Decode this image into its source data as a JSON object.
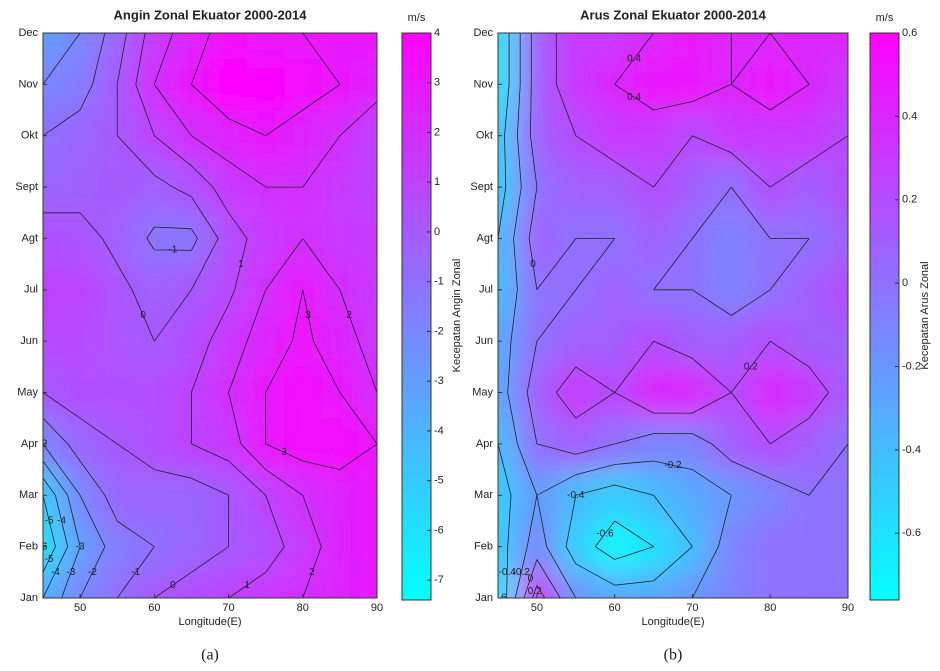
{
  "chart_data": [
    {
      "type": "contour",
      "title": "Angin Zonal Ekuator 2000-2014",
      "x_label": "Longitude(E)",
      "caption": "(a)",
      "colormap": "cool",
      "x": [
        45,
        50,
        55,
        60,
        65,
        70,
        75,
        80,
        85,
        90
      ],
      "categories": [
        "Jan",
        "Feb",
        "Mar",
        "Apr",
        "May",
        "Jun",
        "Jul",
        "Agt",
        "Sept",
        "Okt",
        "Nov",
        "Dec"
      ],
      "z": [
        [
          -4,
          -2,
          -1,
          0,
          0.5,
          1,
          1.5,
          2,
          2.5,
          3
        ],
        [
          -6,
          -3,
          -1.5,
          -1,
          -0.5,
          0,
          0.5,
          1.5,
          2.5,
          3
        ],
        [
          -5,
          -2,
          -0.5,
          -0.5,
          -0.5,
          0,
          1,
          2,
          2.5,
          3
        ],
        [
          -2,
          -0.5,
          0,
          0.5,
          1,
          1.5,
          3,
          3.5,
          3.5,
          3
        ],
        [
          0,
          0.5,
          0.5,
          0.5,
          1,
          2,
          3,
          3.5,
          3,
          2
        ],
        [
          0.8,
          0.8,
          0.3,
          0,
          0.5,
          1.5,
          2.5,
          3.2,
          2.5,
          1.5
        ],
        [
          1,
          1,
          0.2,
          -0.3,
          0,
          0.8,
          2,
          3,
          2,
          1.5
        ],
        [
          0.5,
          0.3,
          -0.2,
          -1.2,
          -1.3,
          0.5,
          1.5,
          2,
          1.5,
          1.5
        ],
        [
          -0.5,
          -0.3,
          0,
          -0.3,
          0.3,
          1.5,
          2,
          2,
          1.5,
          1
        ],
        [
          -1,
          -0.5,
          0,
          1,
          2,
          2.5,
          3,
          2.5,
          2,
          1
        ],
        [
          -2,
          -1.5,
          0,
          2,
          3,
          4,
          3.8,
          3.5,
          3,
          2.5
        ],
        [
          -3,
          -2,
          -0.5,
          1.5,
          2.5,
          3.5,
          3,
          3,
          3,
          3
        ]
      ],
      "xlim": [
        45,
        90
      ],
      "xticks": [
        50,
        60,
        70,
        80,
        90
      ],
      "contour_levels": [
        -7,
        -6,
        -5,
        -4,
        -3,
        -2,
        -1,
        0,
        1,
        2,
        3,
        4
      ],
      "colorbar": {
        "label": "Kecepatan Angin Zonal",
        "unit": "m/s",
        "lim": [
          -7.4,
          4
        ],
        "ticks": [
          -7,
          -6,
          -5,
          -4,
          -3,
          -2,
          -1,
          0,
          1,
          2,
          3,
          4
        ]
      }
    },
    {
      "type": "contour",
      "title": "Arus Zonal Ekuator 2000-2014",
      "x_label": "Longitude(E)",
      "caption": "(b)",
      "colormap": "cool",
      "x": [
        45,
        50,
        55,
        60,
        65,
        70,
        75,
        80,
        85,
        90
      ],
      "categories": [
        "Jan",
        "Feb",
        "Mar",
        "Apr",
        "May",
        "Jun",
        "Jul",
        "Agt",
        "Sept",
        "Okt",
        "Nov",
        "Dec"
      ],
      "z": [
        [
          -0.6,
          0.3,
          -0.2,
          -0.3,
          -0.3,
          -0.2,
          -0.1,
          0,
          0,
          0
        ],
        [
          -0.5,
          -0.1,
          -0.5,
          -0.7,
          -0.6,
          -0.4,
          -0.1,
          0,
          0,
          0
        ],
        [
          -0.5,
          -0.2,
          -0.4,
          -0.5,
          -0.4,
          -0.3,
          -0.2,
          -0.1,
          0,
          0
        ],
        [
          -0.4,
          0,
          0.1,
          0,
          -0.1,
          -0.1,
          0.1,
          0.2,
          0.1,
          0
        ],
        [
          -0.3,
          0.1,
          0.3,
          0.2,
          0.4,
          0.4,
          0.2,
          0.4,
          0.3,
          0.1
        ],
        [
          -0.3,
          0,
          0.1,
          0.1,
          0.2,
          0.1,
          0.1,
          0.2,
          0.1,
          0.1
        ],
        [
          -0.4,
          0,
          0,
          0.1,
          0,
          0,
          -0.1,
          0,
          0.1,
          0.2
        ],
        [
          -0.4,
          0.1,
          0,
          0,
          0.1,
          0,
          -0.1,
          0,
          0,
          0.1
        ],
        [
          -0.5,
          0,
          0.1,
          0.1,
          0.2,
          0.1,
          0,
          0.2,
          0.1,
          0.2
        ],
        [
          -0.5,
          0.1,
          0.2,
          0.3,
          0.3,
          0.2,
          0.3,
          0.3,
          0.3,
          0.2
        ],
        [
          -0.6,
          0.1,
          0.3,
          0.4,
          0.5,
          0.5,
          0.4,
          0.5,
          0.4,
          0.3
        ],
        [
          -0.6,
          0.1,
          0.3,
          0.3,
          0.4,
          0.5,
          0.4,
          0.4,
          0.4,
          0.4
        ]
      ],
      "xlim": [
        45,
        90
      ],
      "xticks": [
        50,
        60,
        70,
        80,
        90
      ],
      "contour_levels": [
        -0.6,
        -0.4,
        -0.2,
        0,
        0.2,
        0.4,
        0.6
      ],
      "colorbar": {
        "label": "Kecepatan Arus Zonal",
        "unit": "m/s",
        "lim": [
          -0.76,
          0.6
        ],
        "ticks": [
          -0.6,
          -0.4,
          -0.2,
          0,
          0.2,
          0.4,
          0.6
        ]
      }
    }
  ]
}
